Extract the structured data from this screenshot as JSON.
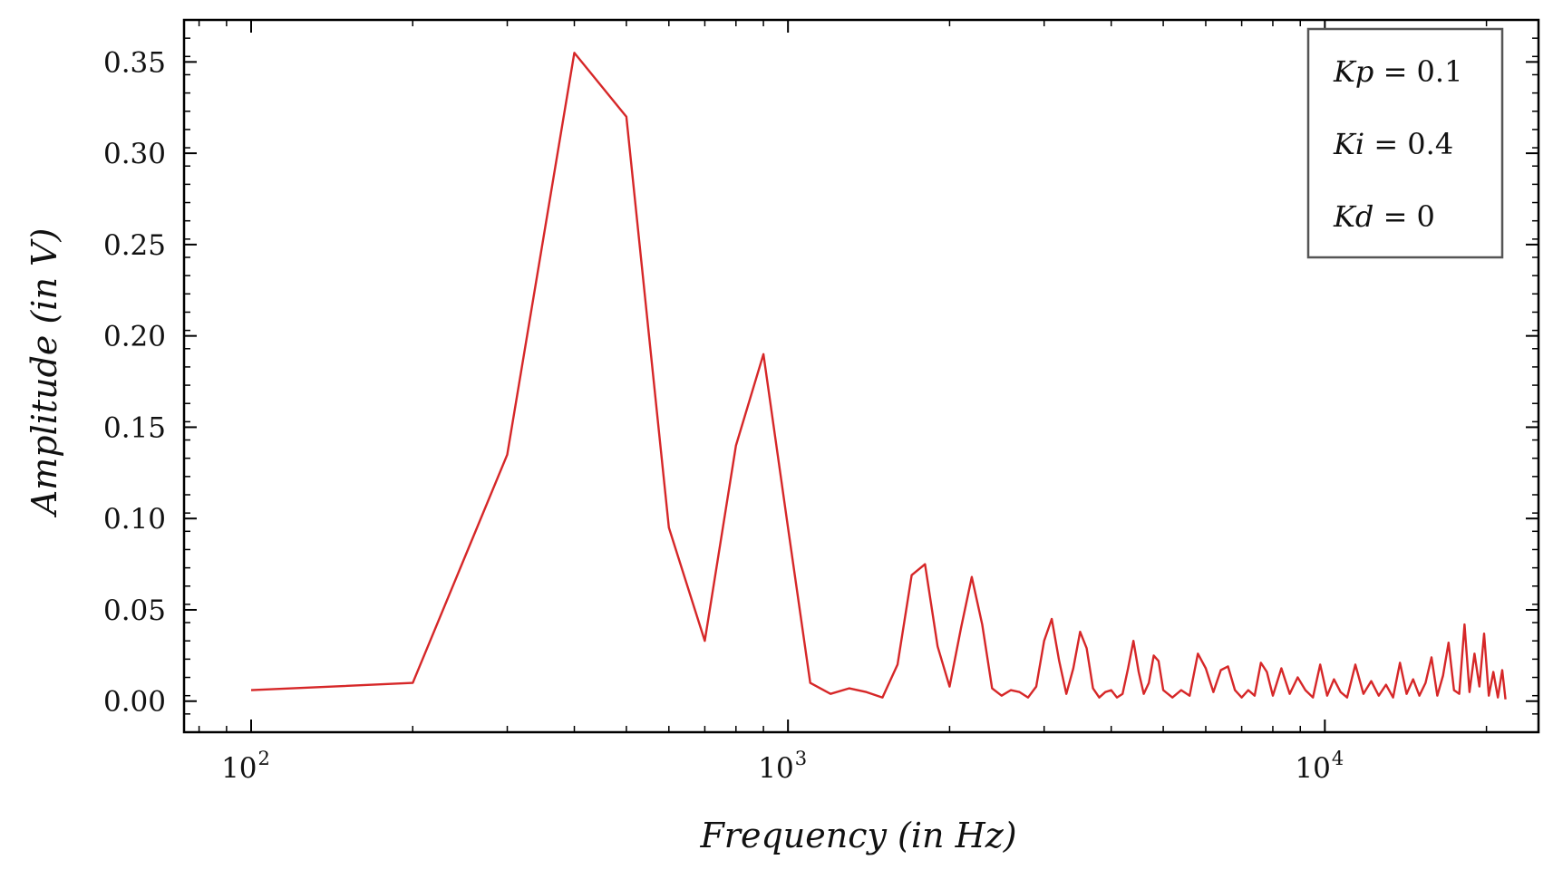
{
  "chart_data": {
    "type": "line",
    "title": "",
    "xlabel": "Frequency (in Hz)",
    "ylabel": "Amplitude (in V)",
    "xscale": "log",
    "xlim": [
      75,
      25000
    ],
    "ylim": [
      -0.017,
      0.373
    ],
    "grid": false,
    "legend_placement": "top-right",
    "line_color": "#d62728",
    "x_ticks": [
      100,
      1000,
      10000
    ],
    "x_tick_labels": [
      {
        "base": "10",
        "exp": "2"
      },
      {
        "base": "10",
        "exp": "3"
      },
      {
        "base": "10",
        "exp": "4"
      }
    ],
    "y_ticks": [
      0.0,
      0.05,
      0.1,
      0.15,
      0.2,
      0.25,
      0.3,
      0.35
    ],
    "y_tick_labels": [
      "0.00",
      "0.05",
      "0.10",
      "0.15",
      "0.20",
      "0.25",
      "0.30",
      "0.35"
    ],
    "legend": [
      {
        "symbol": "Kp",
        "value": "0.1"
      },
      {
        "symbol": "Ki",
        "value": "0.4"
      },
      {
        "symbol": "Kd",
        "value": "0"
      }
    ],
    "series": [
      {
        "x": [
          100,
          200,
          300,
          400,
          500,
          600,
          700,
          800,
          900,
          1000,
          1100,
          1200,
          1300,
          1400,
          1500,
          1600,
          1700,
          1800,
          1900,
          2000,
          2100,
          2200,
          2300,
          2400,
          2500,
          2600,
          2700,
          2800,
          2900,
          3000,
          3100,
          3200,
          3300,
          3400,
          3500,
          3600,
          3700,
          3800,
          3900,
          4000,
          4100,
          4200,
          4300,
          4400,
          4500,
          4600,
          4700,
          4800,
          4900,
          5000,
          5200,
          5400,
          5600,
          5800,
          6000,
          6200,
          6400,
          6600,
          6800,
          7000,
          7200,
          7400,
          7600,
          7800,
          8000,
          8300,
          8600,
          8900,
          9200,
          9500,
          9800,
          10100,
          10400,
          10700,
          11000,
          11400,
          11800,
          12200,
          12600,
          13000,
          13400,
          13800,
          14200,
          14600,
          15000,
          15400,
          15800,
          16200,
          16600,
          17000,
          17400,
          17800,
          18200,
          18600,
          19000,
          19400,
          19800,
          20200,
          20600,
          21000,
          21400,
          21700
        ],
        "y": [
          0.006,
          0.01,
          0.135,
          0.355,
          0.32,
          0.095,
          0.033,
          0.14,
          0.19,
          0.095,
          0.01,
          0.004,
          0.007,
          0.005,
          0.002,
          0.02,
          0.069,
          0.075,
          0.03,
          0.008,
          0.04,
          0.068,
          0.042,
          0.007,
          0.003,
          0.006,
          0.005,
          0.002,
          0.008,
          0.033,
          0.045,
          0.022,
          0.004,
          0.018,
          0.038,
          0.029,
          0.007,
          0.002,
          0.005,
          0.006,
          0.002,
          0.004,
          0.018,
          0.033,
          0.016,
          0.004,
          0.01,
          0.025,
          0.022,
          0.006,
          0.002,
          0.006,
          0.003,
          0.026,
          0.018,
          0.005,
          0.017,
          0.019,
          0.006,
          0.002,
          0.006,
          0.003,
          0.021,
          0.016,
          0.003,
          0.018,
          0.004,
          0.013,
          0.006,
          0.002,
          0.02,
          0.003,
          0.012,
          0.005,
          0.002,
          0.02,
          0.004,
          0.011,
          0.003,
          0.009,
          0.002,
          0.021,
          0.004,
          0.012,
          0.003,
          0.01,
          0.024,
          0.003,
          0.014,
          0.032,
          0.006,
          0.004,
          0.042,
          0.005,
          0.026,
          0.008,
          0.037,
          0.003,
          0.016,
          0.002,
          0.017,
          0.001
        ]
      }
    ]
  }
}
